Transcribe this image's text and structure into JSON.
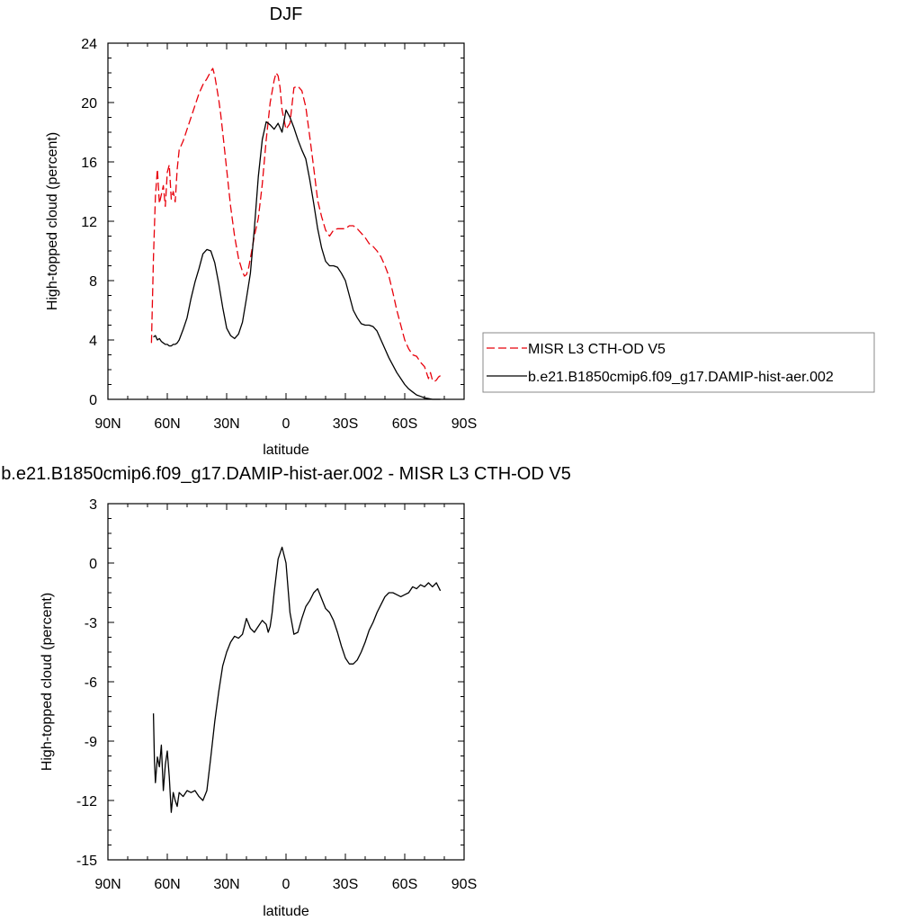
{
  "chart_data": [
    {
      "type": "line",
      "title": "DJF",
      "xlabel": "latitude",
      "ylabel": "High-topped cloud (percent)",
      "xlim": [
        90,
        -90
      ],
      "ylim": [
        0,
        24
      ],
      "xticks": [
        90,
        60,
        30,
        0,
        -30,
        -60,
        -90
      ],
      "xtick_labels": [
        "90N",
        "60N",
        "30N",
        "0",
        "30S",
        "60S",
        "90S"
      ],
      "yticks": [
        0,
        4,
        8,
        12,
        16,
        20,
        24
      ],
      "ytick_labels": [
        "0",
        "4",
        "8",
        "12",
        "16",
        "20",
        "24"
      ],
      "grid": false,
      "legend": "outside-right",
      "series": [
        {
          "name": "MISR L3 CTH-OD V5",
          "color": "#e8000b",
          "dash": "dashed",
          "x": [
            68,
            67,
            66,
            65,
            64,
            63,
            62,
            61,
            60,
            59,
            58,
            57,
            56,
            55,
            54,
            52,
            50,
            48,
            46,
            44,
            42,
            40,
            38,
            37,
            36,
            35,
            34,
            33,
            32,
            30,
            28,
            26,
            24,
            22,
            21,
            20,
            19,
            18,
            16,
            14,
            12,
            10,
            8,
            6,
            5,
            4,
            3,
            2,
            0,
            -2,
            -4,
            -6,
            -8,
            -10,
            -12,
            -14,
            -16,
            -18,
            -20,
            -22,
            -24,
            -26,
            -28,
            -30,
            -32,
            -34,
            -36,
            -38,
            -40,
            -42,
            -44,
            -46,
            -48,
            -50,
            -52,
            -54,
            -56,
            -58,
            -60,
            -62,
            -64,
            -66,
            -68,
            -70,
            -71,
            -72,
            -73,
            -74,
            -75,
            -76,
            -77,
            -78
          ],
          "y": [
            3.8,
            9.5,
            13.7,
            15.5,
            13.2,
            13.8,
            14.4,
            13.0,
            15.3,
            15.8,
            13.5,
            14.0,
            13.3,
            15.5,
            16.8,
            17.4,
            18.2,
            19.0,
            19.8,
            20.6,
            21.2,
            21.6,
            22.1,
            22.3,
            21.8,
            21.0,
            20.2,
            19.2,
            18.0,
            15.5,
            13.0,
            11.0,
            9.5,
            8.6,
            8.3,
            8.4,
            8.8,
            9.5,
            11.0,
            12.2,
            14.5,
            17.5,
            20.0,
            21.5,
            22.0,
            21.8,
            21.0,
            19.5,
            18.2,
            18.6,
            21.0,
            21.1,
            20.8,
            19.7,
            17.7,
            15.6,
            13.4,
            12.3,
            11.4,
            11.0,
            11.4,
            11.5,
            11.5,
            11.5,
            11.7,
            11.7,
            11.5,
            11.2,
            10.9,
            10.5,
            10.3,
            10.0,
            9.6,
            9.0,
            8.3,
            7.2,
            6.0,
            5.0,
            4.0,
            3.4,
            3.0,
            2.9,
            2.5,
            2.2,
            1.8,
            1.4,
            1.8,
            1.3,
            1.2,
            1.3,
            1.5,
            1.6
          ]
        },
        {
          "name": "b.e21.B1850cmip6.f09_g17.DAMIP-hist-aer.002",
          "color": "#000000",
          "dash": "solid",
          "x": [
            67,
            66,
            65,
            64,
            63,
            62,
            61,
            60,
            59,
            58,
            57,
            56,
            55,
            54,
            52,
            50,
            48,
            46,
            44,
            42,
            40,
            38,
            36,
            34,
            32,
            30,
            28,
            26,
            24,
            22,
            20,
            18,
            16,
            14,
            12,
            10,
            8,
            6,
            4,
            2,
            0,
            -2,
            -4,
            -6,
            -8,
            -10,
            -12,
            -14,
            -16,
            -18,
            -20,
            -22,
            -24,
            -26,
            -28,
            -30,
            -32,
            -34,
            -36,
            -38,
            -40,
            -42,
            -44,
            -46,
            -48,
            -50,
            -52,
            -54,
            -56,
            -58,
            -60,
            -62,
            -64,
            -66,
            -68,
            -70,
            -72,
            -74,
            -76,
            -78
          ],
          "y": [
            4.2,
            4.3,
            4.0,
            4.1,
            3.9,
            3.8,
            3.7,
            3.7,
            3.6,
            3.6,
            3.7,
            3.7,
            3.8,
            4.0,
            4.7,
            5.5,
            6.8,
            7.9,
            8.8,
            9.8,
            10.1,
            10.0,
            9.2,
            7.8,
            6.2,
            4.8,
            4.3,
            4.1,
            4.4,
            5.2,
            6.8,
            8.5,
            11.5,
            15.0,
            17.5,
            18.7,
            18.5,
            18.2,
            18.6,
            18.0,
            19.5,
            19.0,
            18.3,
            17.5,
            16.8,
            16.2,
            14.8,
            13.2,
            11.5,
            10.2,
            9.3,
            9.0,
            9.0,
            8.9,
            8.5,
            8.0,
            7.0,
            6.0,
            5.5,
            5.1,
            5.0,
            5.0,
            4.9,
            4.6,
            4.0,
            3.4,
            2.8,
            2.3,
            1.8,
            1.4,
            1.0,
            0.7,
            0.5,
            0.3,
            0.2,
            0.1,
            0.05,
            0.0,
            0.0,
            0.0
          ]
        }
      ]
    },
    {
      "type": "line",
      "title": "b.e21.B1850cmip6.f09_g17.DAMIP-hist-aer.002 - MISR L3 CTH-OD V5",
      "xlabel": "latitude",
      "ylabel": "High-topped cloud (percent)",
      "xlim": [
        90,
        -90
      ],
      "ylim": [
        -15,
        3
      ],
      "xticks": [
        90,
        60,
        30,
        0,
        -30,
        -60,
        -90
      ],
      "xtick_labels": [
        "90N",
        "60N",
        "30N",
        "0",
        "30S",
        "60S",
        "90S"
      ],
      "yticks": [
        3,
        0,
        -3,
        -6,
        -9,
        -12,
        -15
      ],
      "ytick_labels": [
        "3",
        "0",
        "-3",
        "-6",
        "-9",
        "-12",
        "-15"
      ],
      "grid": false,
      "series": [
        {
          "color": "#000000",
          "dash": "solid",
          "x": [
            67,
            66.5,
            66,
            65,
            64,
            63,
            62,
            61,
            60,
            59,
            58,
            57,
            56,
            55,
            54,
            52,
            50,
            48,
            46,
            44,
            42,
            40,
            38,
            36,
            34,
            32,
            30,
            28,
            26,
            24,
            22,
            20,
            18,
            16,
            14,
            12,
            10,
            9,
            8,
            7,
            6,
            4,
            2,
            0,
            -2,
            -4,
            -6,
            -8,
            -10,
            -12,
            -14,
            -16,
            -18,
            -20,
            -22,
            -24,
            -26,
            -28,
            -30,
            -32,
            -34,
            -36,
            -38,
            -40,
            -42,
            -44,
            -46,
            -48,
            -50,
            -52,
            -54,
            -56,
            -58,
            -60,
            -62,
            -64,
            -66,
            -68,
            -70,
            -72,
            -74,
            -76,
            -78
          ],
          "y": [
            -7.6,
            -10.0,
            -11.1,
            -9.8,
            -10.3,
            -9.2,
            -11.5,
            -10.2,
            -9.5,
            -10.8,
            -12.6,
            -11.6,
            -12.0,
            -12.3,
            -11.6,
            -11.8,
            -11.5,
            -11.6,
            -11.5,
            -11.8,
            -12.0,
            -11.5,
            -9.8,
            -8.0,
            -6.5,
            -5.2,
            -4.5,
            -4.0,
            -3.7,
            -3.8,
            -3.6,
            -2.8,
            -3.3,
            -3.5,
            -3.2,
            -2.9,
            -3.1,
            -3.5,
            -3.2,
            -2.5,
            -1.5,
            0.2,
            0.8,
            0.0,
            -2.5,
            -3.6,
            -3.5,
            -2.8,
            -2.2,
            -1.9,
            -1.5,
            -1.3,
            -1.8,
            -2.3,
            -2.5,
            -2.9,
            -3.5,
            -4.2,
            -4.8,
            -5.1,
            -5.1,
            -4.9,
            -4.5,
            -4.0,
            -3.4,
            -3.0,
            -2.5,
            -2.1,
            -1.7,
            -1.5,
            -1.5,
            -1.6,
            -1.7,
            -1.6,
            -1.5,
            -1.2,
            -1.3,
            -1.1,
            -1.2,
            -1.0,
            -1.2,
            -1.0,
            -1.4
          ]
        }
      ]
    }
  ]
}
